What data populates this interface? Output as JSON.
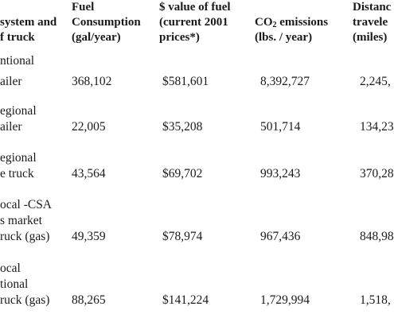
{
  "table": {
    "headers": {
      "system": [
        "system and",
        "f truck"
      ],
      "fuel": [
        "Fuel",
        "Consumption",
        "(gal/year)"
      ],
      "value": [
        "$ value of fuel",
        "(current 2001",
        "prices*)"
      ],
      "co2_prefix": "CO",
      "co2_sub": "2",
      "co2_suffix": " emissions",
      "co2_units": "(lbs. / year)",
      "distance": [
        "Distanc",
        "travele",
        "(miles)"
      ]
    },
    "rows": [
      {
        "name_lines": [
          "ntional",
          "ailer"
        ],
        "fuel": "368,102",
        "value": "$581,601",
        "co2": "8,392,727",
        "distance": "2,245,"
      },
      {
        "name_lines": [
          "egional",
          "ailer"
        ],
        "fuel": "22,005",
        "value": "$35,208",
        "co2": "501,714",
        "distance": "134,23"
      },
      {
        "name_lines": [
          "egional",
          "e truck"
        ],
        "fuel": "43,564",
        "value": "$69,702",
        "co2": "993,243",
        "distance": "370,28"
      },
      {
        "name_lines": [
          "ocal -CSA",
          "s market",
          "ruck (gas)"
        ],
        "fuel": "49,359",
        "value": "$78,974",
        "co2": "967,436",
        "distance": "848,98"
      },
      {
        "name_lines": [
          "ocal",
          "tional",
          "ruck (gas)"
        ],
        "fuel": "88,265",
        "value": "$141,224",
        "co2": "1,729,994",
        "distance": "1,518,"
      }
    ]
  }
}
